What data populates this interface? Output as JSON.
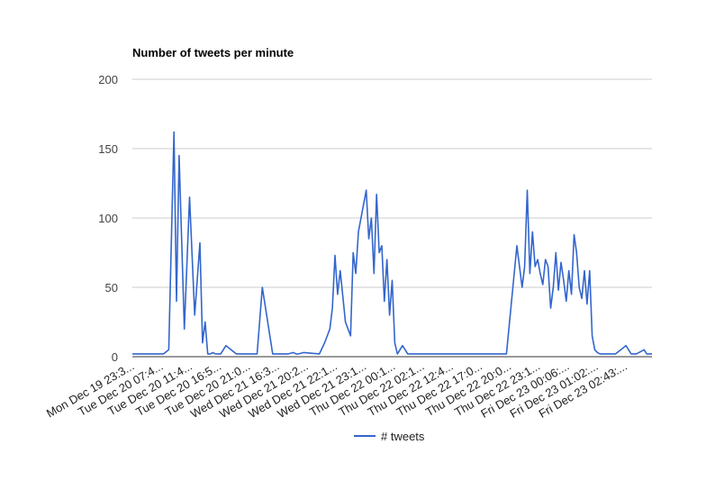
{
  "chart_data": {
    "type": "line",
    "title": "Number of tweets per minute",
    "xlabel": "",
    "ylabel": "",
    "ylim": [
      0,
      200
    ],
    "yticks": [
      0,
      50,
      100,
      150,
      200
    ],
    "grid": true,
    "legend_position": "bottom",
    "series_color": "#3366cc",
    "x_tick_labels": [
      "Mon Dec 19 23:3...",
      "Tue Dec 20 07:4...",
      "Tue Dec 20 11:4...",
      "Tue Dec 20 16:5...",
      "Tue Dec 20 21:0...",
      "Wed Dec 21 16:3...",
      "Wed Dec 21 20:2...",
      "Wed Dec 21 22:1...",
      "Wed Dec 21 23:1...",
      "Thu Dec 22 00:1...",
      "Thu Dec 22 02:1...",
      "Thu Dec 22 12:4...",
      "Thu Dec 22 17:0...",
      "Thu Dec 22 20:0...",
      "Thu Dec 22 23:1...",
      "Fri Dec 23 00:06:...",
      "Fri Dec 23 01:02:...",
      "Fri Dec 23 02:43:..."
    ],
    "series": [
      {
        "name": "# tweets",
        "x": [
          0,
          0.06,
          0.07,
          0.08,
          0.085,
          0.09,
          0.1,
          0.11,
          0.12,
          0.13,
          0.135,
          0.14,
          0.145,
          0.15,
          0.155,
          0.16,
          0.17,
          0.18,
          0.2,
          0.22,
          0.24,
          0.25,
          0.27,
          0.29,
          0.3,
          0.31,
          0.315,
          0.32,
          0.33,
          0.36,
          0.37,
          0.38,
          0.385,
          0.39,
          0.395,
          0.4,
          0.41,
          0.42,
          0.425,
          0.43,
          0.435,
          0.44,
          0.445,
          0.45,
          0.455,
          0.46,
          0.465,
          0.47,
          0.475,
          0.48,
          0.485,
          0.49,
          0.495,
          0.5,
          0.505,
          0.51,
          0.52,
          0.53,
          0.55,
          0.6,
          0.65,
          0.7,
          0.72,
          0.74,
          0.75,
          0.755,
          0.76,
          0.765,
          0.77,
          0.775,
          0.78,
          0.785,
          0.79,
          0.795,
          0.8,
          0.805,
          0.81,
          0.815,
          0.82,
          0.825,
          0.83,
          0.835,
          0.84,
          0.845,
          0.85,
          0.855,
          0.86,
          0.865,
          0.87,
          0.875,
          0.88,
          0.885,
          0.89,
          0.895,
          0.9,
          0.905,
          0.91,
          0.915,
          0.92,
          0.925,
          0.93,
          0.95,
          0.96,
          0.97,
          0.985,
          0.99,
          1
        ],
        "values": [
          2,
          2,
          5,
          162,
          40,
          145,
          20,
          115,
          30,
          82,
          10,
          25,
          2,
          2,
          3,
          2,
          2,
          8,
          2,
          2,
          2,
          50,
          2,
          2,
          2,
          3,
          2,
          2,
          3,
          2,
          10,
          20,
          35,
          73,
          45,
          62,
          25,
          15,
          75,
          60,
          90,
          100,
          110,
          120,
          85,
          100,
          60,
          117,
          75,
          80,
          40,
          70,
          30,
          55,
          10,
          2,
          8,
          2,
          2,
          2,
          2,
          2,
          2,
          80,
          50,
          65,
          120,
          60,
          90,
          65,
          70,
          60,
          52,
          70,
          65,
          35,
          50,
          75,
          48,
          68,
          55,
          40,
          62,
          45,
          88,
          75,
          50,
          42,
          62,
          38,
          62,
          15,
          5,
          3,
          2,
          2,
          2,
          2,
          2,
          2,
          2,
          8,
          2,
          2,
          5,
          2,
          2
        ]
      }
    ]
  }
}
